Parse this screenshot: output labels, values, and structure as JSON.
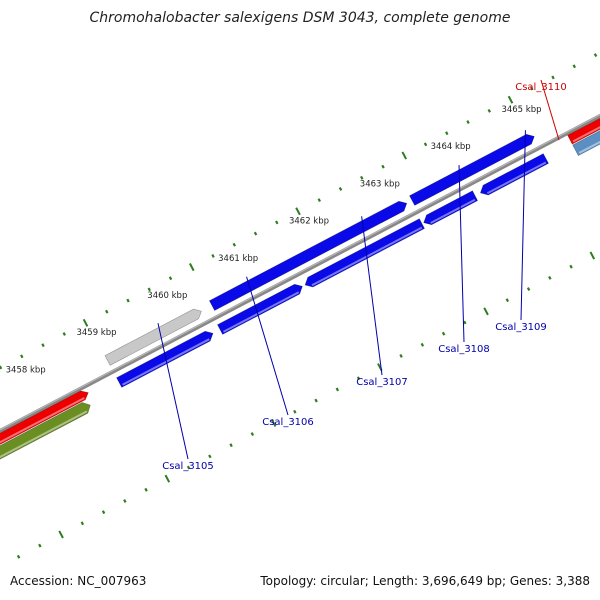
{
  "title": "Chromohalobacter salexigens DSM 3043, complete genome",
  "footer": {
    "accession": "Accession: NC_007963",
    "summary": "Topology: circular; Length: 3,696,649 bp; Genes: 3,388"
  },
  "colors": {
    "backbone": "#888888",
    "tick": "#2e7d1e",
    "forward_cds": "#0a0ae8",
    "reverse_cds": "#0a0ae8",
    "red_feature": "#ee0000",
    "green_feature": "#6b8e23",
    "steel_feature": "#5b8fc4",
    "pseudo_feature": "#c8c8c8",
    "label_blue": "#0000aa",
    "label_red": "#cc0000"
  },
  "kbp_labels": [
    {
      "kbp": 3458,
      "text": "3458 kbp"
    },
    {
      "kbp": 3459,
      "text": "3459 kbp"
    },
    {
      "kbp": 3460,
      "text": "3460 kbp"
    },
    {
      "kbp": 3461,
      "text": "3461 kbp"
    },
    {
      "kbp": 3462,
      "text": "3462 kbp"
    },
    {
      "kbp": 3463,
      "text": "3463 kbp"
    },
    {
      "kbp": 3464,
      "text": "3464 kbp"
    },
    {
      "kbp": 3465,
      "text": "3465 kbp"
    }
  ],
  "gene_labels": [
    {
      "name": "Csal_3105",
      "color": "label_blue"
    },
    {
      "name": "Csal_3106",
      "color": "label_blue"
    },
    {
      "name": "Csal_3107",
      "color": "label_blue"
    },
    {
      "name": "Csal_3108",
      "color": "label_blue"
    },
    {
      "name": "Csal_3109",
      "color": "label_blue"
    },
    {
      "name": "Csal_3110",
      "color": "label_red"
    }
  ]
}
